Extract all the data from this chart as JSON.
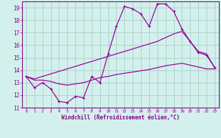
{
  "xlabel": "Windchill (Refroidissement éolien,°C)",
  "background_color": "#d4f0ec",
  "grid_color": "#aad4cc",
  "line_color": "#990099",
  "x_hours": [
    0,
    1,
    2,
    3,
    4,
    5,
    6,
    7,
    8,
    9,
    10,
    11,
    12,
    13,
    14,
    15,
    16,
    17,
    18,
    19,
    20,
    21,
    22,
    23
  ],
  "windchill": [
    13.5,
    12.6,
    13.0,
    12.5,
    11.5,
    11.4,
    11.9,
    11.8,
    13.5,
    13.0,
    15.3,
    17.5,
    19.1,
    18.9,
    18.5,
    17.5,
    19.3,
    19.3,
    18.7,
    17.3,
    16.3,
    15.4,
    15.2,
    14.2
  ],
  "temp_upper": [
    13.5,
    13.3,
    13.5,
    13.7,
    13.9,
    14.1,
    14.3,
    14.5,
    14.7,
    14.9,
    15.1,
    15.3,
    15.5,
    15.7,
    15.9,
    16.1,
    16.3,
    16.6,
    16.9,
    17.1,
    16.3,
    15.5,
    15.3,
    14.2
  ],
  "temp_lower": [
    13.5,
    13.2,
    13.2,
    13.1,
    12.9,
    12.8,
    12.9,
    13.0,
    13.2,
    13.4,
    13.5,
    13.65,
    13.75,
    13.85,
    13.95,
    14.05,
    14.2,
    14.35,
    14.45,
    14.55,
    14.4,
    14.25,
    14.1,
    14.1
  ],
  "ylim": [
    11,
    19.5
  ],
  "xlim_min": -0.5,
  "xlim_max": 23.5,
  "yticks": [
    11,
    12,
    13,
    14,
    15,
    16,
    17,
    18,
    19
  ],
  "xticks": [
    0,
    1,
    2,
    3,
    4,
    5,
    6,
    7,
    8,
    9,
    10,
    11,
    12,
    13,
    14,
    15,
    16,
    17,
    18,
    19,
    20,
    21,
    22,
    23
  ]
}
